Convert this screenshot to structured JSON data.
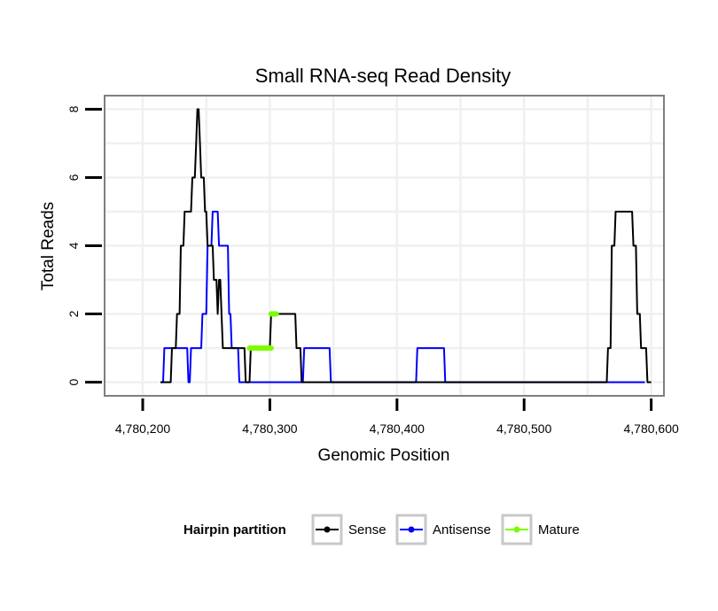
{
  "chart_data": {
    "type": "line",
    "title": "Small RNA-seq Read Density",
    "xlabel": "Genomic Position",
    "ylabel": "Total Reads",
    "xlim": [
      4780170,
      4780610
    ],
    "ylim": [
      -0.4,
      8.4
    ],
    "x_ticks": [
      4780200,
      4780300,
      4780400,
      4780500,
      4780600
    ],
    "x_tick_labels": [
      "4,780,200",
      "4,780,300",
      "4,780,400",
      "4,780,500",
      "4,780,600"
    ],
    "y_ticks": [
      0,
      2,
      4,
      6,
      8
    ],
    "y_tick_labels": [
      "0",
      "2",
      "4",
      "6",
      "8"
    ],
    "grid": true,
    "legend": {
      "title": "Hairpin partition",
      "position": "bottom",
      "entries": [
        "Sense",
        "Antisense",
        "Mature"
      ]
    },
    "series": [
      {
        "name": "Sense",
        "color": "#000000",
        "x": [
          4780214,
          4780222,
          4780223,
          4780226,
          4780227,
          4780229,
          4780230,
          4780232,
          4780233,
          4780238,
          4780239,
          4780241,
          4780242,
          4780243,
          4780244,
          4780245,
          4780246,
          4780248,
          4780249,
          4780250,
          4780251,
          4780255,
          4780256,
          4780258,
          4780259,
          4780260,
          4780261,
          4780262,
          4780263,
          4780266,
          4780267,
          4780280,
          4780281,
          4780284,
          4780285,
          4780300,
          4780301,
          4780320,
          4780321,
          4780324,
          4780325,
          4780565,
          4780566,
          4780568,
          4780569,
          4780571,
          4780572,
          4780585,
          4780586,
          4780588,
          4780589,
          4780591,
          4780592,
          4780596,
          4780597,
          4780600
        ],
        "values": [
          0,
          0,
          1,
          1,
          2,
          2,
          4,
          4,
          5,
          5,
          6,
          6,
          7,
          8,
          8,
          7,
          6,
          6,
          5,
          5,
          4,
          4,
          3,
          3,
          2,
          3,
          3,
          2,
          1,
          1,
          1,
          1,
          0,
          0,
          1,
          1,
          2,
          2,
          1,
          1,
          0,
          0,
          1,
          1,
          4,
          4,
          5,
          5,
          4,
          4,
          2,
          2,
          1,
          1,
          0,
          0
        ]
      },
      {
        "name": "Antisense",
        "color": "#0000ff",
        "x": [
          4780214,
          4780216,
          4780217,
          4780235,
          4780236,
          4780237,
          4780238,
          4780246,
          4780247,
          4780250,
          4780251,
          4780254,
          4780255,
          4780259,
          4780260,
          4780261,
          4780262,
          4780267,
          4780268,
          4780269,
          4780270,
          4780275,
          4780276,
          4780277,
          4780278,
          4780326,
          4780327,
          4780347,
          4780348,
          4780415,
          4780416,
          4780437,
          4780438,
          4780595
        ],
        "values": [
          0,
          0,
          1,
          1,
          0,
          0,
          1,
          1,
          2,
          2,
          4,
          4,
          5,
          5,
          4,
          4,
          4,
          4,
          2,
          2,
          1,
          1,
          0,
          0,
          0,
          0,
          1,
          1,
          0,
          0,
          1,
          1,
          0,
          0
        ]
      },
      {
        "name": "Mature",
        "color": "#7cfc00",
        "segments": [
          {
            "x": [
              4780284,
              4780301
            ],
            "values": [
              1,
              1
            ]
          },
          {
            "x": [
              4780301,
              4780305
            ],
            "values": [
              2,
              2
            ]
          }
        ]
      }
    ]
  }
}
